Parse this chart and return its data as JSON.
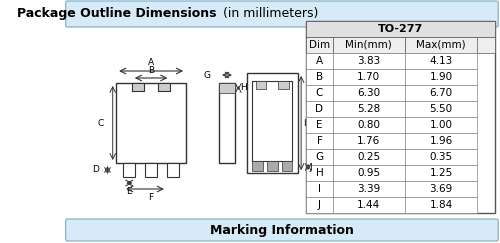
{
  "title": "Package Outline Dimensions",
  "title_suffix": " (in millimeters)",
  "table_title": "TO-277",
  "col_headers": [
    "Dim",
    "Min(mm)",
    "Max(mm)"
  ],
  "rows": [
    [
      "A",
      "3.83",
      "4.13"
    ],
    [
      "B",
      "1.70",
      "1.90"
    ],
    [
      "C",
      "6.30",
      "6.70"
    ],
    [
      "D",
      "5.28",
      "5.50"
    ],
    [
      "E",
      "0.80",
      "1.00"
    ],
    [
      "F",
      "1.76",
      "1.96"
    ],
    [
      "G",
      "0.25",
      "0.35"
    ],
    [
      "H",
      "0.95",
      "1.25"
    ],
    [
      "I",
      "3.39",
      "3.69"
    ],
    [
      "J",
      "1.44",
      "1.84"
    ]
  ],
  "footer_title": "Marking Information",
  "bg_color": "#ffffff",
  "header_bg": "#d6e4f0",
  "table_header_bg": "#e8e8e8",
  "border_color": "#000000",
  "light_blue": "#d6eaf8",
  "body_bg": "#f0f7fd"
}
